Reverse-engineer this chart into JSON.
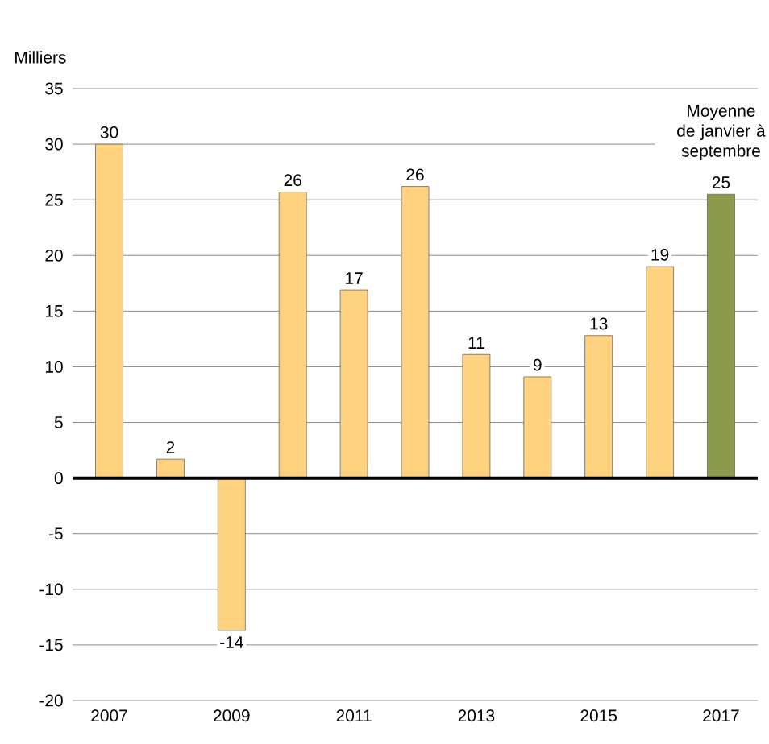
{
  "chart_data": {
    "type": "bar",
    "ylabel": "Milliers",
    "categories": [
      "2007",
      null,
      "2009",
      null,
      "2011",
      null,
      "2013",
      null,
      "2015",
      null,
      "2017"
    ],
    "values": [
      30,
      1.7,
      -13.7,
      25.7,
      16.9,
      26.2,
      11.1,
      9.1,
      12.8,
      19,
      25.5
    ],
    "value_labels": [
      "30",
      "2",
      "-14",
      "26",
      "17",
      "26",
      "11",
      "9",
      "13",
      "19",
      "25"
    ],
    "colors": [
      "#ffd27f",
      "#ffd27f",
      "#ffd27f",
      "#ffd27f",
      "#ffd27f",
      "#ffd27f",
      "#ffd27f",
      "#ffd27f",
      "#ffd27f",
      "#ffd27f",
      "#8c9a4b"
    ],
    "ylim": [
      -20,
      35
    ],
    "yticks": [
      -20,
      -15,
      -10,
      -5,
      0,
      5,
      10,
      15,
      20,
      25,
      30,
      35
    ],
    "grid": "y",
    "annotations": [
      {
        "text": "Moyenne de janvier à septembre",
        "x": "2017",
        "y": 25.5
      }
    ]
  }
}
